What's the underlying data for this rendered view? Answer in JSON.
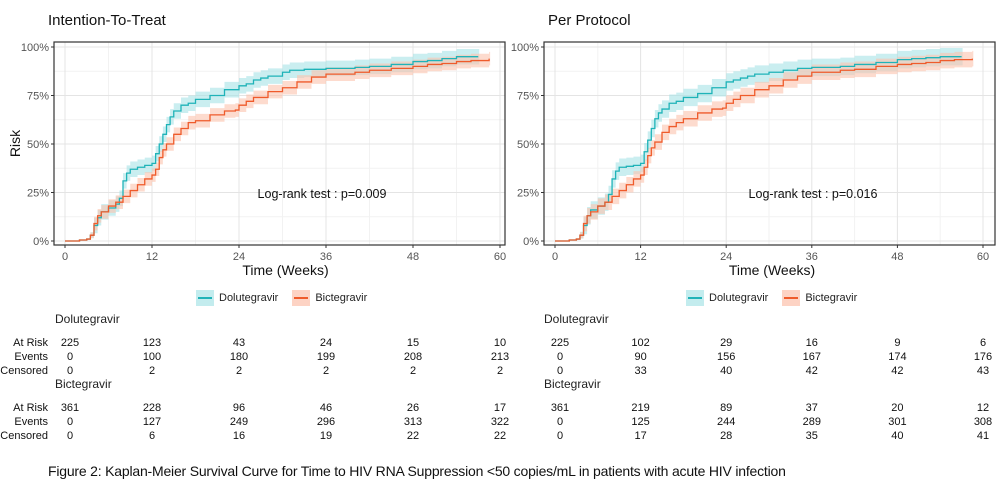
{
  "figure_caption": "Figure 2: Kaplan-Meier Survival Curve for Time to HIV RNA Suppression <50 copies/mL in patients with acute HIV infection",
  "colors": {
    "dolutegravir_line": "#1fb3b8",
    "dolutegravir_band": "#a6e3e6",
    "bictegravir_line": "#ef5b2b",
    "bictegravir_band": "#fbc3ae"
  },
  "chart_data": [
    {
      "type": "line",
      "title": "Intention-To-Treat",
      "xlabel": "Time (Weeks)",
      "ylabel": "Risk",
      "xlim": [
        0,
        60
      ],
      "ylim": [
        0,
        100
      ],
      "x_ticks": [
        "0",
        "12",
        "24",
        "36",
        "48",
        "60"
      ],
      "y_ticks": [
        "0%",
        "25%",
        "50%",
        "75%",
        "100%"
      ],
      "grid": true,
      "annotation": "Log-rank test : p=0.009",
      "legend": {
        "position": "bottom",
        "entries": [
          "Dolutegravir",
          "Bictegravir"
        ]
      },
      "series": [
        {
          "name": "Dolutegravir",
          "x": [
            0,
            2,
            3,
            3.5,
            4,
            4.5,
            5,
            6,
            7,
            7.5,
            8,
            8.5,
            9,
            10,
            11,
            12,
            12.5,
            13,
            13.5,
            14,
            14.5,
            15,
            16,
            17,
            18,
            20,
            22,
            24,
            25,
            26,
            27,
            28,
            30,
            31,
            33,
            36,
            40,
            42,
            45,
            48,
            50,
            52,
            54,
            57
          ],
          "y": [
            0,
            0.5,
            1,
            3,
            8,
            12,
            15,
            17,
            19,
            22,
            31,
            35,
            37,
            38,
            39,
            40,
            45,
            50,
            55,
            60,
            64,
            67,
            70,
            71,
            73,
            75,
            78,
            80,
            81,
            83,
            84,
            85,
            87,
            88,
            88.5,
            89,
            89.5,
            90,
            91,
            92.5,
            93,
            94,
            95,
            95
          ],
          "ci_halfwidth": 4
        },
        {
          "name": "Bictegravir",
          "x": [
            0,
            2,
            3,
            3.5,
            4,
            4.5,
            5,
            6,
            7,
            8,
            9,
            10,
            11,
            12,
            12.5,
            13,
            13.5,
            14,
            15,
            16,
            17,
            18,
            20,
            22,
            23.5,
            24,
            25,
            26,
            28,
            30,
            32,
            34,
            36,
            40,
            42,
            45,
            48,
            50,
            52,
            54,
            56,
            58.5
          ],
          "y": [
            0,
            0.5,
            1,
            3,
            9,
            13,
            15,
            18,
            20,
            23,
            26,
            29,
            32,
            34,
            37,
            43,
            47,
            50,
            55,
            58,
            61,
            62,
            65,
            67,
            67.5,
            70,
            72,
            74,
            77,
            79,
            82,
            84.5,
            86,
            87,
            88,
            89,
            90,
            91,
            91.5,
            92.5,
            93,
            94
          ],
          "ci_halfwidth": 3.5
        }
      ],
      "risk_table": {
        "time_points": [
          0,
          12,
          24,
          36,
          48,
          60
        ],
        "groups": [
          {
            "name": "Dolutegravir",
            "at_risk": [
              "225",
              "123",
              "43",
              "24",
              "15",
              "10"
            ],
            "events": [
              "0",
              "100",
              "180",
              "199",
              "208",
              "213"
            ],
            "censored": [
              "0",
              "2",
              "2",
              "2",
              "2",
              "2"
            ]
          },
          {
            "name": "Bictegravir",
            "at_risk": [
              "361",
              "228",
              "96",
              "46",
              "26",
              "17"
            ],
            "events": [
              "0",
              "127",
              "249",
              "296",
              "313",
              "322"
            ],
            "censored": [
              "0",
              "6",
              "16",
              "19",
              "22",
              "22"
            ]
          }
        ]
      }
    },
    {
      "type": "line",
      "title": "Per Protocol",
      "xlabel": "Time (Weeks)",
      "ylabel": "",
      "xlim": [
        0,
        60
      ],
      "ylim": [
        0,
        100
      ],
      "x_ticks": [
        "0",
        "12",
        "24",
        "36",
        "48",
        "60"
      ],
      "y_ticks": [
        "0%",
        "25%",
        "50%",
        "75%",
        "100%"
      ],
      "grid": true,
      "annotation": "Log-rank test : p=0.016",
      "legend": {
        "position": "bottom",
        "entries": [
          "Dolutegravir",
          "Bictegravir"
        ]
      },
      "series": [
        {
          "name": "Dolutegravir",
          "x": [
            0,
            2,
            3,
            3.5,
            4,
            4.5,
            5,
            6,
            7,
            7.5,
            8,
            8.5,
            9,
            10,
            11,
            12,
            12.5,
            13,
            13.5,
            14,
            14.5,
            15,
            16,
            17,
            18,
            20,
            22,
            24,
            25,
            26,
            27,
            28,
            30,
            32,
            34,
            36,
            40,
            42,
            45,
            48,
            50,
            52,
            54,
            57
          ],
          "y": [
            0,
            0.5,
            1,
            3,
            8,
            13,
            16,
            18,
            20,
            24,
            32,
            36,
            38,
            38.5,
            39,
            40,
            46,
            52,
            58,
            63,
            66,
            68,
            71,
            72,
            74,
            76,
            79,
            82,
            83,
            84,
            85,
            86,
            87,
            88,
            89,
            89.5,
            90,
            91,
            92,
            93.5,
            94,
            94.5,
            95,
            95
          ],
          "ci_halfwidth": 4.5
        },
        {
          "name": "Bictegravir",
          "x": [
            0,
            2,
            3,
            3.5,
            4,
            4.5,
            5,
            6,
            7,
            8,
            9,
            10,
            11,
            12,
            12.5,
            13,
            13.5,
            14,
            15,
            16,
            17,
            18,
            20,
            22,
            23.5,
            24,
            25,
            26,
            28,
            30,
            32,
            34,
            36,
            40,
            42,
            45,
            48,
            50,
            52,
            54,
            56,
            58.5
          ],
          "y": [
            0,
            0.5,
            1,
            3,
            9,
            13,
            15,
            18,
            20,
            23,
            26,
            29,
            32,
            34,
            38,
            44,
            48,
            51,
            56,
            59,
            61,
            63,
            66,
            68,
            68.5,
            71,
            73,
            75,
            78,
            80,
            83,
            85,
            87,
            88,
            88.5,
            90,
            91,
            91.5,
            92,
            93,
            93.5,
            94
          ],
          "ci_halfwidth": 4
        }
      ],
      "risk_table": {
        "time_points": [
          0,
          12,
          24,
          36,
          48,
          60
        ],
        "groups": [
          {
            "name": "Dolutegravir",
            "at_risk": [
              "225",
              "102",
              "29",
              "16",
              "9",
              "6"
            ],
            "events": [
              "0",
              "90",
              "156",
              "167",
              "174",
              "176"
            ],
            "censored": [
              "0",
              "33",
              "40",
              "42",
              "42",
              "43"
            ]
          },
          {
            "name": "Bictegravir",
            "at_risk": [
              "361",
              "219",
              "89",
              "37",
              "20",
              "12"
            ],
            "events": [
              "0",
              "125",
              "244",
              "289",
              "301",
              "308"
            ],
            "censored": [
              "0",
              "17",
              "28",
              "35",
              "40",
              "41"
            ]
          }
        ]
      }
    }
  ],
  "risk_table_row_labels": [
    "At Risk",
    "Events",
    "Censored"
  ]
}
